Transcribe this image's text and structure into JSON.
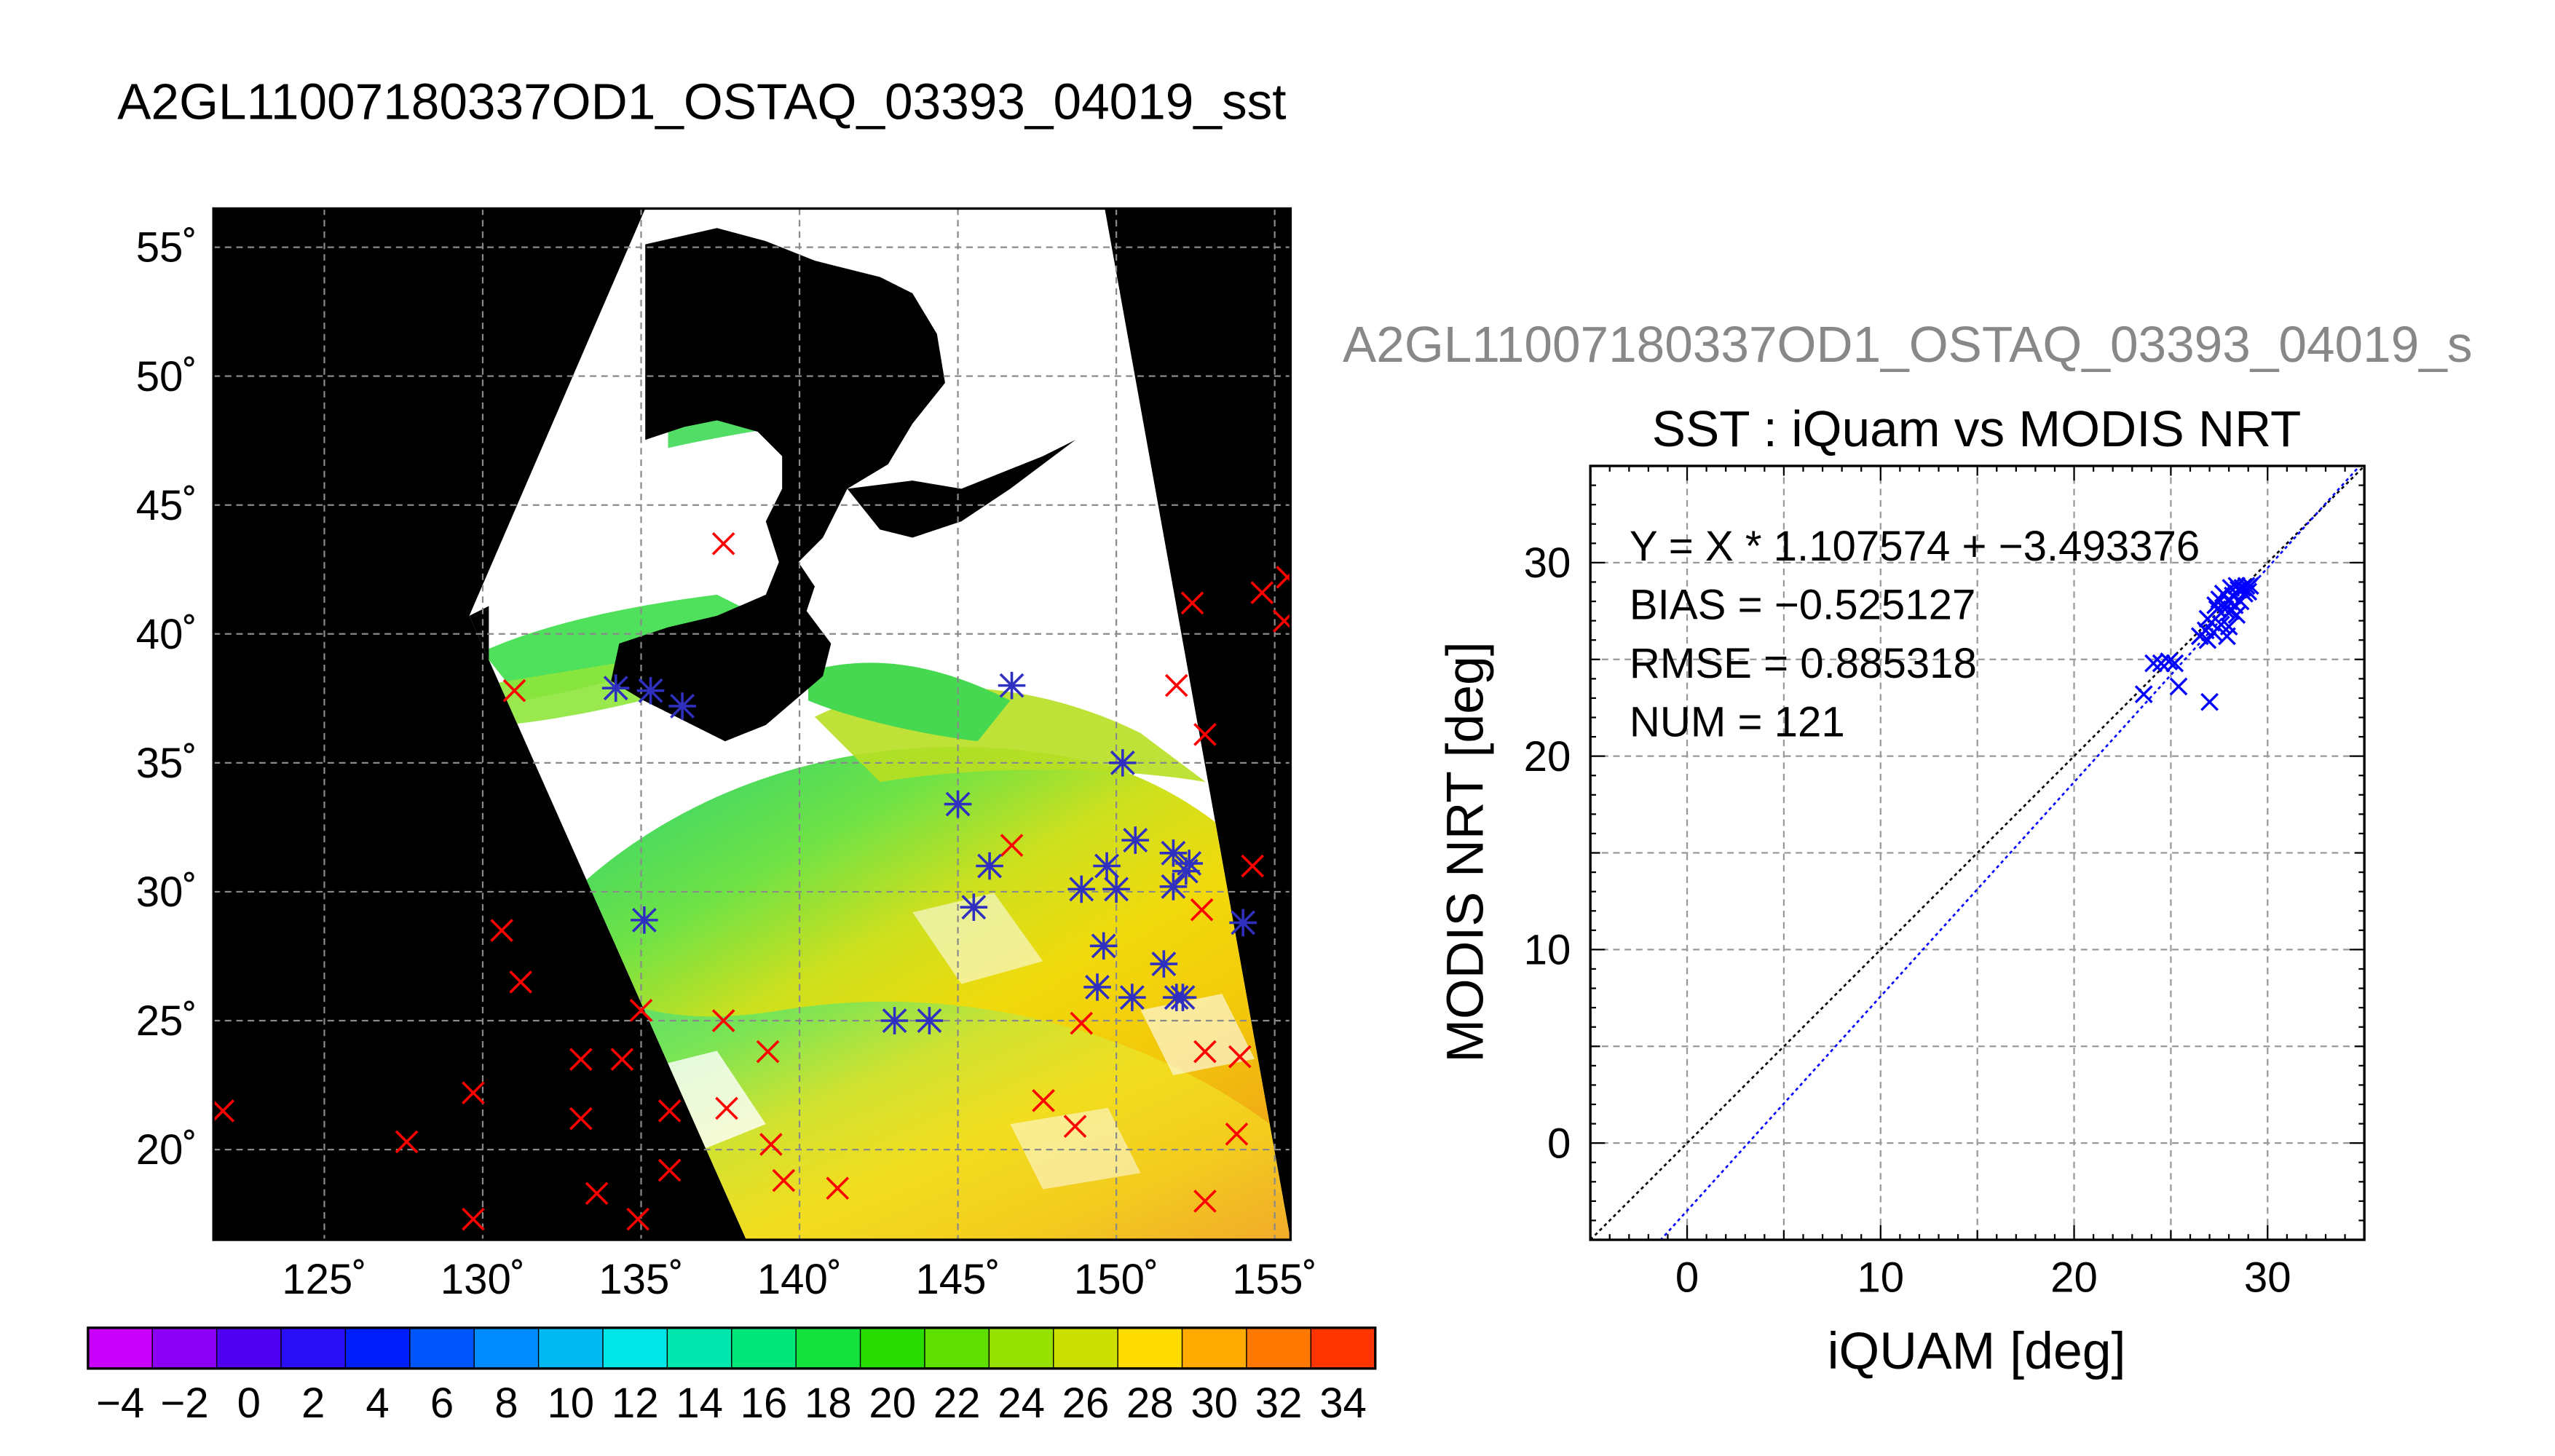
{
  "figure": {
    "file_title": "A2GL11007180337OD1_OSTAQ_03393_04019_sst",
    "file_title_clipped": "A2GL11007180337OD1_OSTAQ_03393_04019_s"
  },
  "chart_data": [
    {
      "type": "map",
      "title": "A2GL11007180337OD1_OSTAQ_03393_04019_sst",
      "xlim": [
        121.5,
        155.5
      ],
      "ylim": [
        16.5,
        56.5
      ],
      "x_ticks": [
        125,
        130,
        135,
        140,
        145,
        150,
        155
      ],
      "x_tick_labels": [
        "125˚",
        "130˚",
        "135˚",
        "140˚",
        "145˚",
        "150˚",
        "155˚"
      ],
      "y_ticks": [
        20,
        25,
        30,
        35,
        40,
        45,
        50,
        55
      ],
      "y_tick_labels": [
        "20˚",
        "25˚",
        "30˚",
        "35˚",
        "40˚",
        "45˚",
        "50˚",
        "55˚"
      ],
      "grid": true,
      "colorbar": {
        "min": -5,
        "max": 35,
        "step": 2,
        "tick_values": [
          -4,
          -2,
          0,
          2,
          4,
          6,
          8,
          10,
          12,
          14,
          16,
          18,
          20,
          22,
          24,
          26,
          28,
          30,
          32,
          34
        ],
        "tick_labels": [
          "−4",
          "−2",
          "0",
          "2",
          "4",
          "6",
          "8",
          "10",
          "12",
          "14",
          "16",
          "18",
          "20",
          "22",
          "24",
          "26",
          "28",
          "30",
          "32",
          "34"
        ]
      },
      "series": [
        {
          "marker": "x",
          "color": "#ff0000",
          "points": [
            [
              121.8,
              21.5
            ],
            [
              127.6,
              20.3
            ],
            [
              129.7,
              22.2
            ],
            [
              129.7,
              17.3
            ],
            [
              130.6,
              28.5
            ],
            [
              131.0,
              37.8
            ],
            [
              131.2,
              26.5
            ],
            [
              133.1,
              23.5
            ],
            [
              133.1,
              21.2
            ],
            [
              133.6,
              18.3
            ],
            [
              134.4,
              23.5
            ],
            [
              134.9,
              17.3
            ],
            [
              135.0,
              25.4
            ],
            [
              135.9,
              21.5
            ],
            [
              135.9,
              19.2
            ],
            [
              137.6,
              43.5
            ],
            [
              137.6,
              25.0
            ],
            [
              137.7,
              21.6
            ],
            [
              139.0,
              23.8
            ],
            [
              139.1,
              20.2
            ],
            [
              139.5,
              18.8
            ],
            [
              141.2,
              18.5
            ],
            [
              146.7,
              31.8
            ],
            [
              147.7,
              21.9
            ],
            [
              148.7,
              20.9
            ],
            [
              148.9,
              24.9
            ],
            [
              152.4,
              41.2
            ],
            [
              151.9,
              38.0
            ],
            [
              152.8,
              36.1
            ],
            [
              152.7,
              29.3
            ],
            [
              152.8,
              23.8
            ],
            [
              152.8,
              18.0
            ],
            [
              153.9,
              23.6
            ],
            [
              153.8,
              20.6
            ],
            [
              154.3,
              31.0
            ],
            [
              154.6,
              41.6
            ],
            [
              155.4,
              42.2
            ],
            [
              155.3,
              40.5
            ]
          ]
        },
        {
          "marker": "asterisk",
          "color": "#3030c0",
          "points": [
            [
              134.2,
              37.9
            ],
            [
              135.3,
              37.8
            ],
            [
              136.3,
              37.2
            ],
            [
              135.1,
              28.9
            ],
            [
              145.0,
              33.4
            ],
            [
              146.7,
              38.0
            ],
            [
              145.5,
              29.4
            ],
            [
              146.0,
              31.0
            ],
            [
              143.0,
              25.0
            ],
            [
              144.1,
              25.0
            ],
            [
              148.9,
              30.1
            ],
            [
              149.4,
              26.3
            ],
            [
              149.6,
              27.9
            ],
            [
              149.7,
              31.0
            ],
            [
              150.0,
              30.1
            ],
            [
              150.2,
              35.0
            ],
            [
              150.5,
              25.9
            ],
            [
              150.6,
              32.0
            ],
            [
              151.5,
              27.2
            ],
            [
              151.9,
              25.9
            ],
            [
              151.8,
              31.5
            ],
            [
              151.8,
              30.2
            ],
            [
              152.2,
              30.8
            ],
            [
              152.3,
              31.1
            ],
            [
              152.1,
              25.9
            ],
            [
              154.0,
              28.8
            ]
          ]
        }
      ]
    },
    {
      "type": "scatter",
      "title": "SST : iQuam vs MODIS NRT",
      "xlabel": "iQUAM [deg]",
      "ylabel": "MODIS NRT [deg]",
      "xlim": [
        -5,
        35
      ],
      "ylim": [
        -5,
        35
      ],
      "x_ticks": [
        0,
        10,
        20,
        30
      ],
      "y_ticks": [
        0,
        10,
        20,
        30
      ],
      "grid": true,
      "annotations": [
        "Y = X * 1.107574 + −3.493376",
        "BIAS = −0.525127",
        "RMSE = 0.885318",
        "NUM = 121"
      ],
      "fit": {
        "slope": 1.107574,
        "intercept": -3.493376,
        "color": "#0000ff",
        "style": "dotted"
      },
      "one_to_one": {
        "color": "#000000",
        "style": "dotted"
      },
      "series": [
        {
          "marker": "x",
          "color": "#0000ff",
          "points": [
            [
              23.6,
              23.2
            ],
            [
              24.1,
              24.8
            ],
            [
              24.5,
              24.8
            ],
            [
              24.9,
              24.9
            ],
            [
              25.2,
              24.8
            ],
            [
              25.4,
              23.6
            ],
            [
              26.5,
              26.2
            ],
            [
              26.8,
              26.5
            ],
            [
              26.9,
              27.1
            ],
            [
              27.0,
              22.8
            ],
            [
              27.1,
              26.9
            ],
            [
              27.2,
              26.4
            ],
            [
              27.4,
              27.6
            ],
            [
              27.6,
              26.8
            ],
            [
              27.8,
              27.6
            ],
            [
              27.9,
              26.2
            ],
            [
              28.0,
              28.0
            ],
            [
              28.0,
              26.7
            ],
            [
              28.1,
              27.5
            ],
            [
              28.2,
              28.3
            ],
            [
              28.3,
              27.8
            ],
            [
              28.4,
              27.3
            ],
            [
              28.5,
              28.6
            ],
            [
              28.6,
              28.0
            ],
            [
              28.7,
              28.7
            ],
            [
              28.8,
              28.4
            ],
            [
              28.9,
              28.8
            ],
            [
              29.0,
              28.5
            ],
            [
              29.1,
              28.8
            ],
            [
              27.5,
              28.1
            ],
            [
              27.7,
              28.4
            ],
            [
              28.1,
              28.7
            ],
            [
              27.3,
              27.8
            ],
            [
              26.9,
              26.0
            ],
            [
              28.4,
              28.8
            ]
          ]
        }
      ]
    }
  ]
}
